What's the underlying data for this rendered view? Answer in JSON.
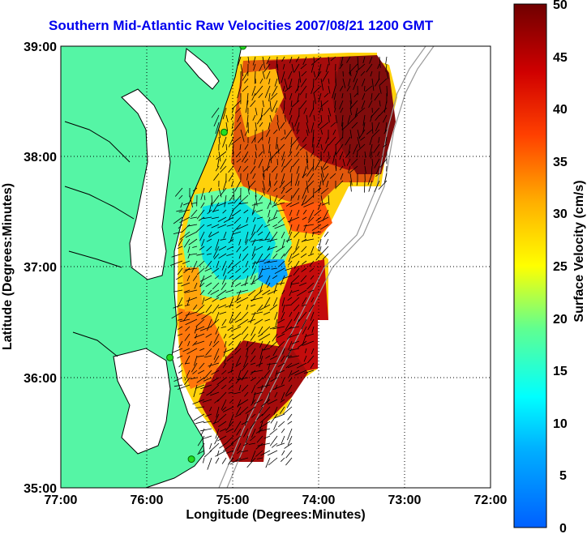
{
  "title": "Southern Mid-Atlantic Raw Velocities 2007/08/21 1200 GMT",
  "x_axis": {
    "label": "Longitude (Degrees:Minutes)",
    "ticks": [
      "77:00",
      "76:00",
      "75:00",
      "74:00",
      "73:00",
      "72:00"
    ]
  },
  "y_axis": {
    "label": "Latitude (Degrees:Minutes)",
    "ticks": [
      "39:00",
      "38:00",
      "37:00",
      "36:00",
      "35:00"
    ]
  },
  "colorbar": {
    "label": "Surface Velocity (cm/s)",
    "ticks": [
      "50",
      "45",
      "40",
      "35",
      "30",
      "25",
      "20",
      "15",
      "10",
      "5",
      "0"
    ],
    "range": [
      0,
      50
    ]
  },
  "colors": {
    "land": "#55f5a5",
    "title": "#0000ee"
  },
  "map_extent": {
    "lon": [
      -77,
      -72
    ],
    "lat": [
      35,
      39
    ]
  },
  "station_markers": [
    {
      "lon": -74.88,
      "lat": 39.0
    },
    {
      "lon": -75.1,
      "lat": 38.22
    },
    {
      "lon": -75.73,
      "lat": 36.18
    },
    {
      "lon": -75.48,
      "lat": 35.26
    }
  ]
}
